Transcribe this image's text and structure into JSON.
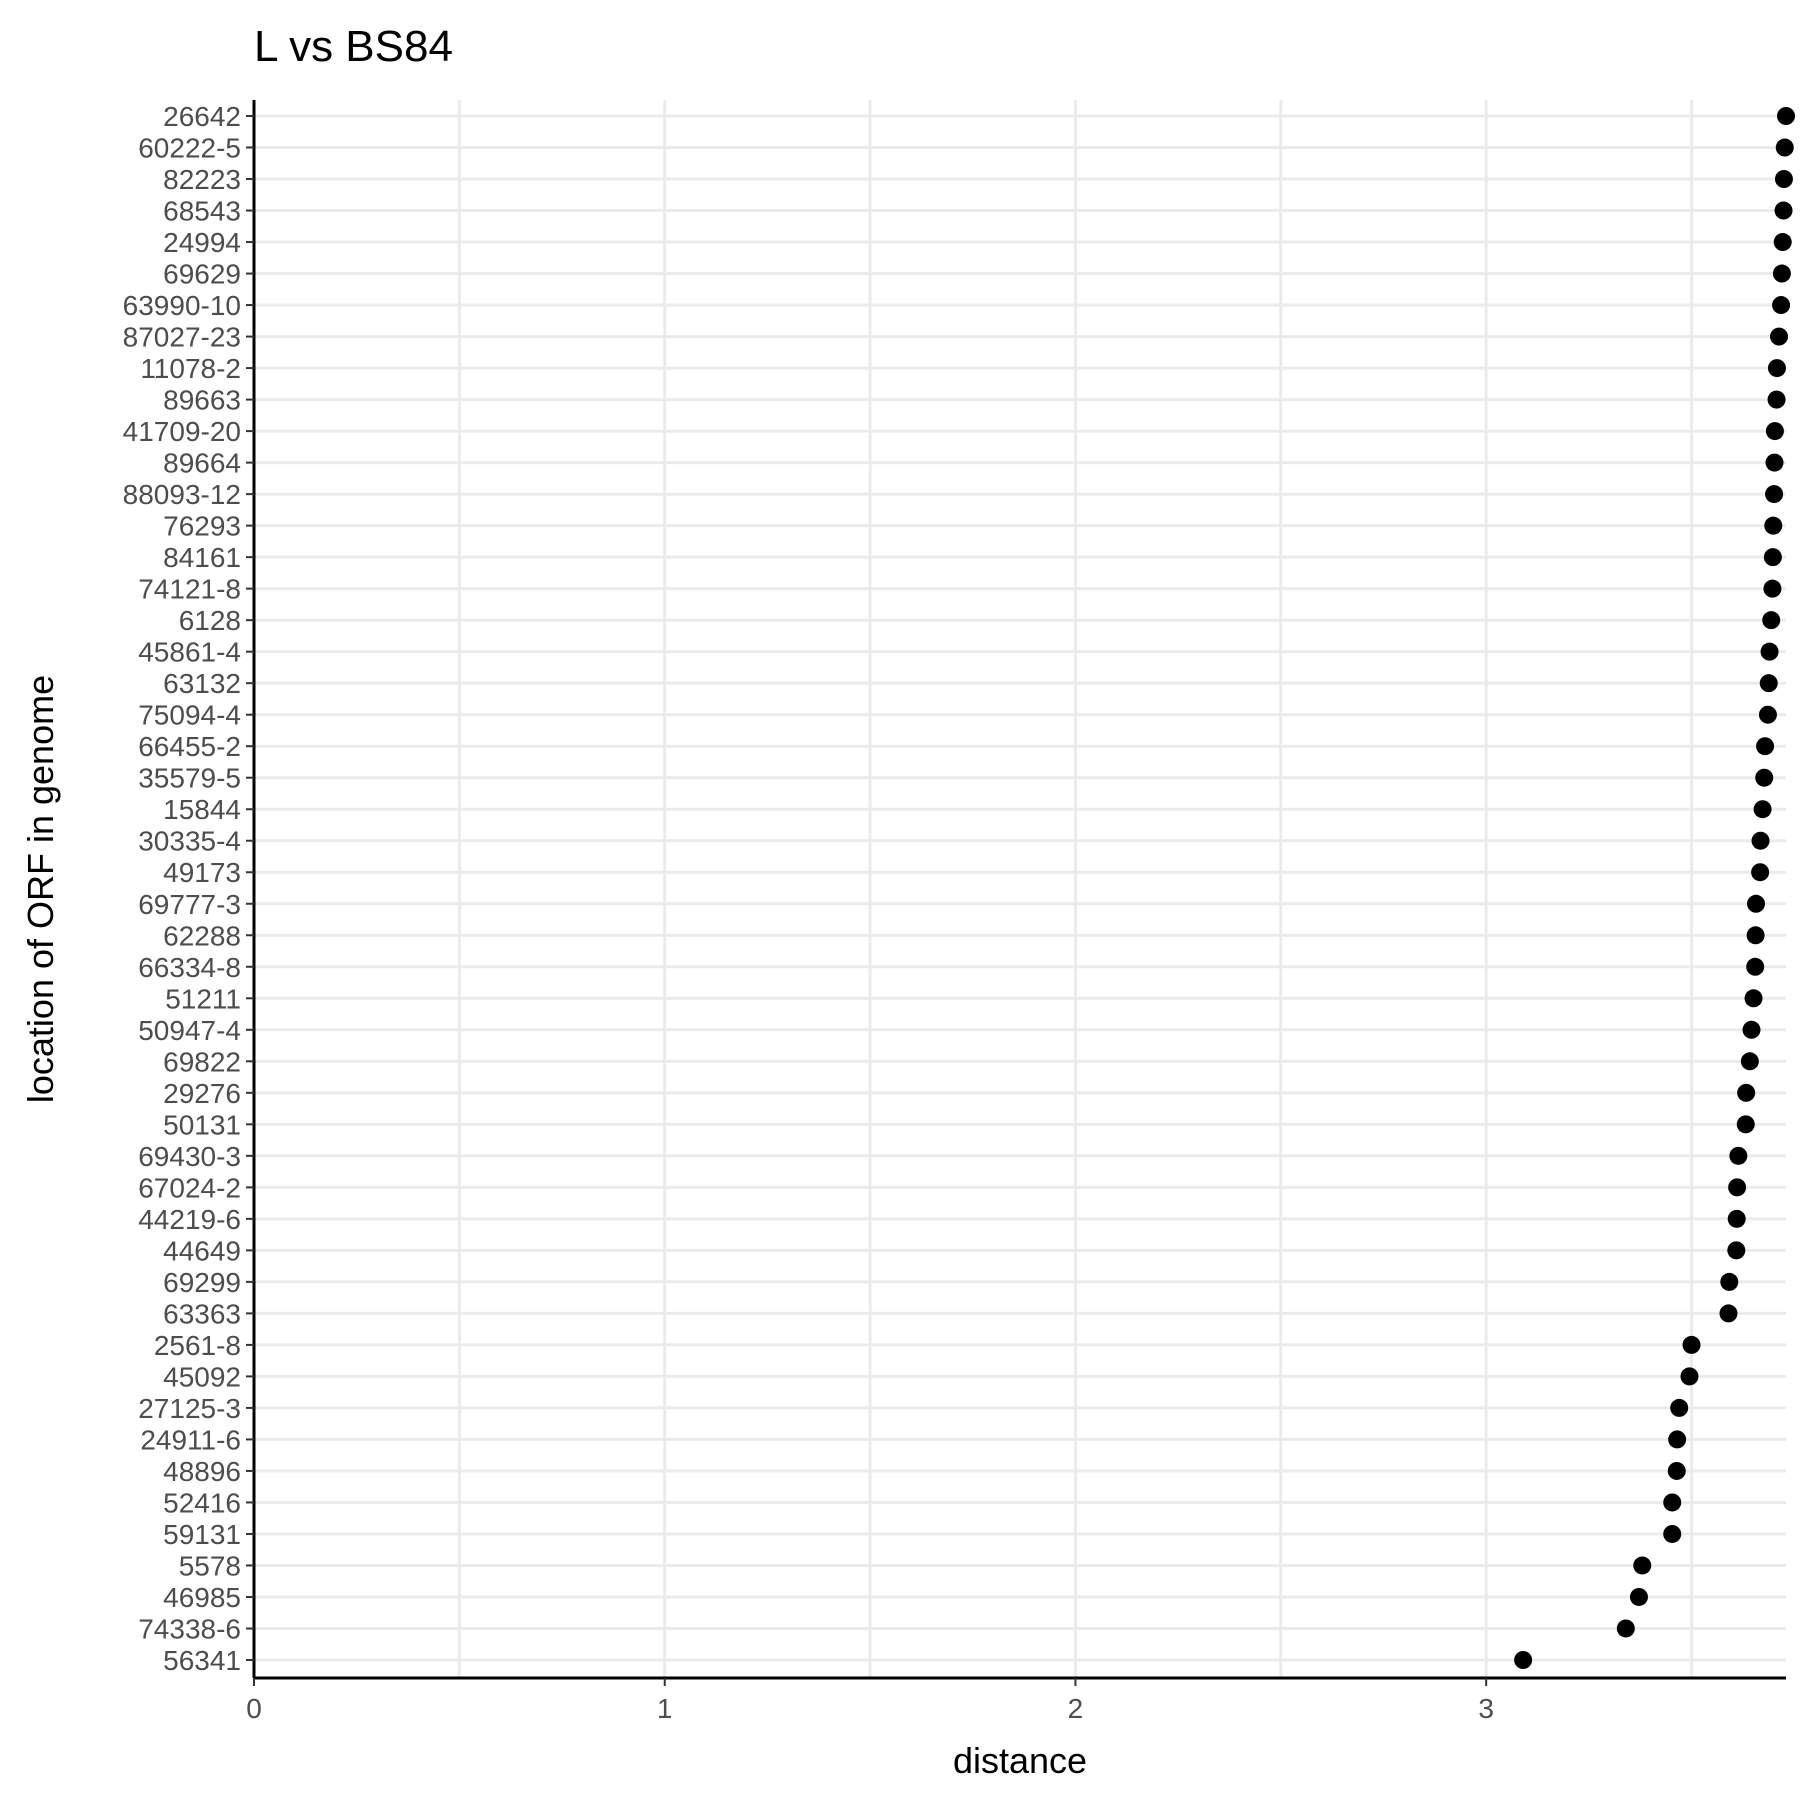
{
  "chart_data": {
    "type": "scatter",
    "title": "L vs BS84",
    "xlabel": "distance",
    "ylabel": "location of ORF in genome",
    "xlim": [
      0,
      3.73
    ],
    "x_ticks": [
      0,
      1,
      2,
      3
    ],
    "x_minor_grid": [
      0.5,
      1.5,
      2.5,
      3.5
    ],
    "grid": "major and minor",
    "legend": "none",
    "colors": {
      "point": "#000000",
      "grid": "#ebebeb",
      "axis": "#000000",
      "tick_text": "#4d4d4d"
    },
    "categories": [
      "26642",
      "60222-5",
      "82223",
      "68543",
      "24994",
      "69629",
      "63990-10",
      "87027-23",
      "11078-2",
      "89663",
      "41709-20",
      "89664",
      "88093-12",
      "76293",
      "84161",
      "74121-8",
      "6128",
      "45861-4",
      "63132",
      "75094-4",
      "66455-2",
      "35579-5",
      "15844",
      "30335-4",
      "49173",
      "69777-3",
      "62288",
      "66334-8",
      "51211",
      "50947-4",
      "69822",
      "29276",
      "50131",
      "69430-3",
      "67024-2",
      "44219-6",
      "44649",
      "69299",
      "63363",
      "2561-8",
      "45092",
      "27125-3",
      "24911-6",
      "48896",
      "52416",
      "59131",
      "5578",
      "46985",
      "74338-6",
      "56341"
    ],
    "values": [
      3.73,
      3.727,
      3.725,
      3.724,
      3.722,
      3.72,
      3.718,
      3.713,
      3.708,
      3.707,
      3.703,
      3.702,
      3.701,
      3.699,
      3.698,
      3.697,
      3.694,
      3.69,
      3.688,
      3.686,
      3.679,
      3.677,
      3.673,
      3.668,
      3.667,
      3.657,
      3.656,
      3.655,
      3.651,
      3.646,
      3.642,
      3.633,
      3.632,
      3.614,
      3.611,
      3.61,
      3.609,
      3.592,
      3.59,
      3.5,
      3.495,
      3.47,
      3.465,
      3.464,
      3.453,
      3.453,
      3.38,
      3.372,
      3.34,
      3.09
    ]
  }
}
